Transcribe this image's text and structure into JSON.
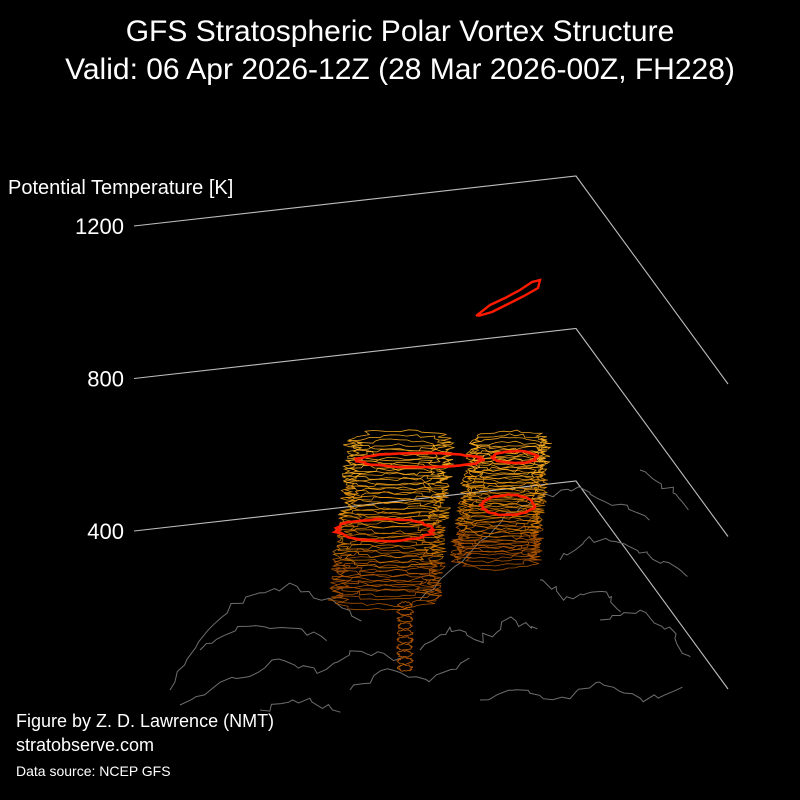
{
  "chart_data": {
    "type": "3d-contour",
    "title": "GFS Stratospheric Polar Vortex Structure",
    "subtitle": "Valid: 06 Apr 2026-12Z  (28 Mar 2026-00Z, FH228)",
    "zlabel": "Potential Temperature [K]",
    "z_ticks": [
      400,
      800,
      1200
    ],
    "zlim": [
      400,
      1200
    ],
    "grid": true,
    "colors": {
      "background": "#000000",
      "axes": "#bdbdbd",
      "coastline": "#6e6e6e",
      "vortex_edge": "#ff1a00",
      "isentropic_shells": [
        "#b85a00",
        "#d47a00",
        "#f09a10",
        "#ffb020"
      ]
    }
  },
  "credits": {
    "author": "Figure by Z. D. Lawrence (NMT)",
    "site": "stratobserve.com",
    "source": "Data source: NCEP GFS"
  }
}
